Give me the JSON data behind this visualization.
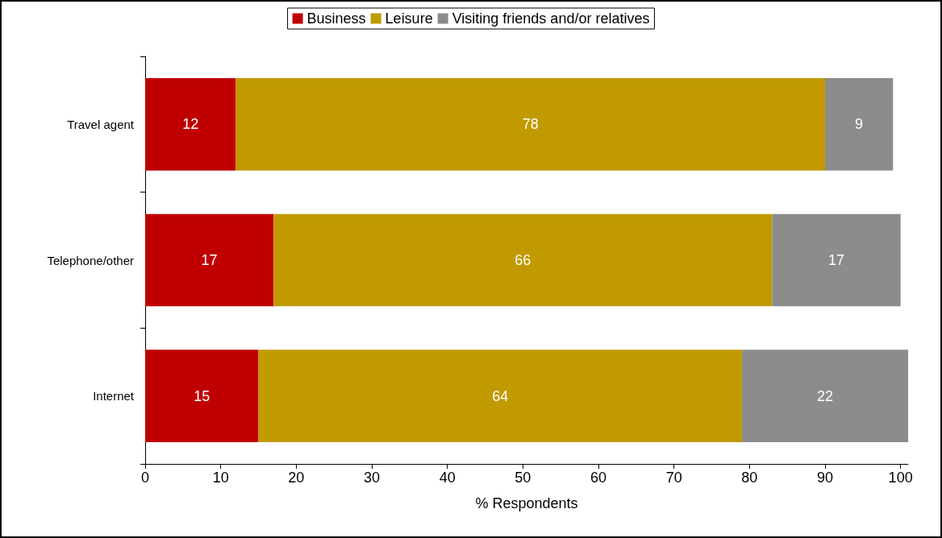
{
  "chart_data": {
    "type": "bar",
    "orientation": "horizontal",
    "stacked": true,
    "xlabel": "% Respondents",
    "categories": [
      "Travel agent",
      "Telephone/other",
      "Internet"
    ],
    "series": [
      {
        "name": "Business",
        "color": "#c00000",
        "values": [
          12,
          17,
          15
        ]
      },
      {
        "name": "Leisure",
        "color": "#c09a00",
        "values": [
          78,
          66,
          64
        ]
      },
      {
        "name": "Visiting friends and/or relatives",
        "color": "#8c8c8c",
        "values": [
          9,
          17,
          22
        ]
      }
    ],
    "xlim": [
      0,
      101
    ],
    "xticks": [
      0,
      10,
      20,
      30,
      40,
      50,
      60,
      70,
      80,
      90,
      100
    ],
    "grid": false,
    "legend": "top",
    "data_labels": true
  }
}
